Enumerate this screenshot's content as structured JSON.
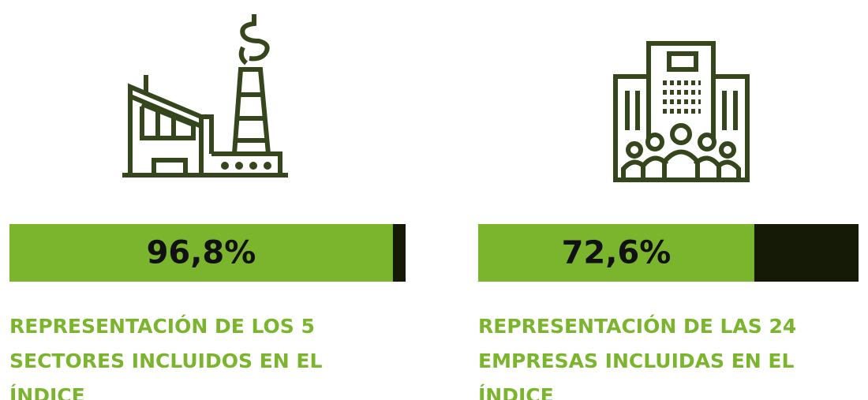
{
  "chart_data": [
    {
      "type": "progress",
      "values": [
        96.8
      ],
      "value_labels": [
        "96,8%"
      ],
      "xlim": [
        0,
        100
      ],
      "color": "#7ab52d",
      "track_color": "#141a05",
      "caption": [
        "REPRESENTACIÓN DE LOS 5",
        "SECTORES INCLUIDOS EN EL",
        "ÍNDICE"
      ]
    },
    {
      "type": "progress",
      "values": [
        72.6
      ],
      "value_labels": [
        "72,6%"
      ],
      "xlim": [
        0,
        100
      ],
      "color": "#7ab52d",
      "track_color": "#141a05",
      "caption": [
        "REPRESENTACIÓN DE LAS 24",
        "EMPRESAS INCLUIDAS EN EL",
        "ÍNDICE"
      ]
    }
  ]
}
